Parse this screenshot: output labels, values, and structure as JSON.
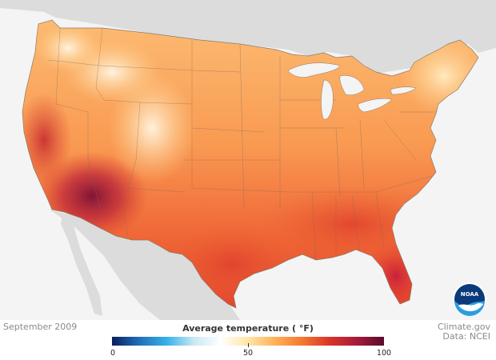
{
  "footer": {
    "date": "September 2009",
    "credit_site": "Climate.gov",
    "credit_data": "Data: NCEI"
  },
  "legend": {
    "title": "Average temperature ( °F)",
    "ticks": [
      "0",
      "50",
      "100"
    ],
    "min": 0,
    "max": 100,
    "colors": [
      "#0a1e5c",
      "#1f6fb8",
      "#37b0e6",
      "#c8e8f4",
      "#ffffff",
      "#ffe6a8",
      "#ffb15a",
      "#f4772f",
      "#d9342a",
      "#a61b3a",
      "#5a0b2e"
    ]
  },
  "logo": {
    "text": "NOAA",
    "icon": "noaa-logo-icon"
  },
  "map": {
    "region": "contiguous-united-states",
    "land_color": "#f8a25a",
    "background_land_color": "#dcdcdc",
    "water_color": "#f4f4f4",
    "border_color": "#7a6a5a"
  }
}
